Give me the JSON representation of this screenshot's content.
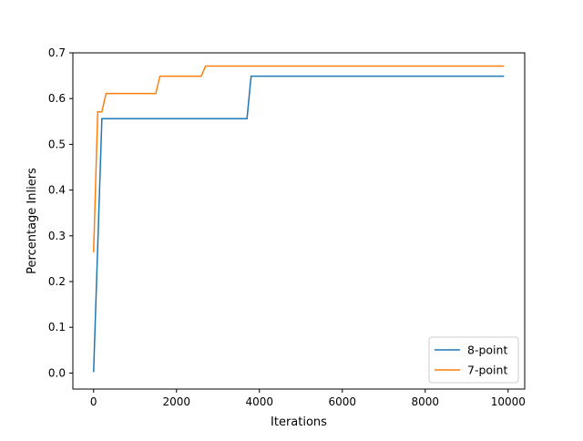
{
  "chart_data": {
    "type": "line",
    "title": "",
    "xlabel": "Iterations",
    "ylabel": "Percentage Inliers",
    "xlim": [
      -500,
      10400
    ],
    "ylim": [
      -0.035,
      0.7
    ],
    "x_ticks": [
      0,
      2000,
      4000,
      6000,
      8000,
      10000
    ],
    "x_tick_labels": [
      "0",
      "2000",
      "4000",
      "6000",
      "8000",
      "10000"
    ],
    "y_ticks": [
      0.0,
      0.1,
      0.2,
      0.3,
      0.4,
      0.5,
      0.6,
      0.7
    ],
    "y_tick_labels": [
      "0.0",
      "0.1",
      "0.2",
      "0.3",
      "0.4",
      "0.5",
      "0.6",
      "0.7"
    ],
    "grid": false,
    "legend_position": "lower-right",
    "series": [
      {
        "name": "8-point",
        "color": "#1f77b4",
        "x": [
          0,
          200,
          3700,
          3800,
          9900
        ],
        "y": [
          0.002,
          0.556,
          0.556,
          0.649,
          0.649
        ]
      },
      {
        "name": "7-point",
        "color": "#ff7f0e",
        "x": [
          0,
          100,
          200,
          300,
          1500,
          1600,
          2600,
          2700,
          9900
        ],
        "y": [
          0.264,
          0.571,
          0.571,
          0.611,
          0.611,
          0.649,
          0.649,
          0.671,
          0.671
        ]
      }
    ]
  }
}
